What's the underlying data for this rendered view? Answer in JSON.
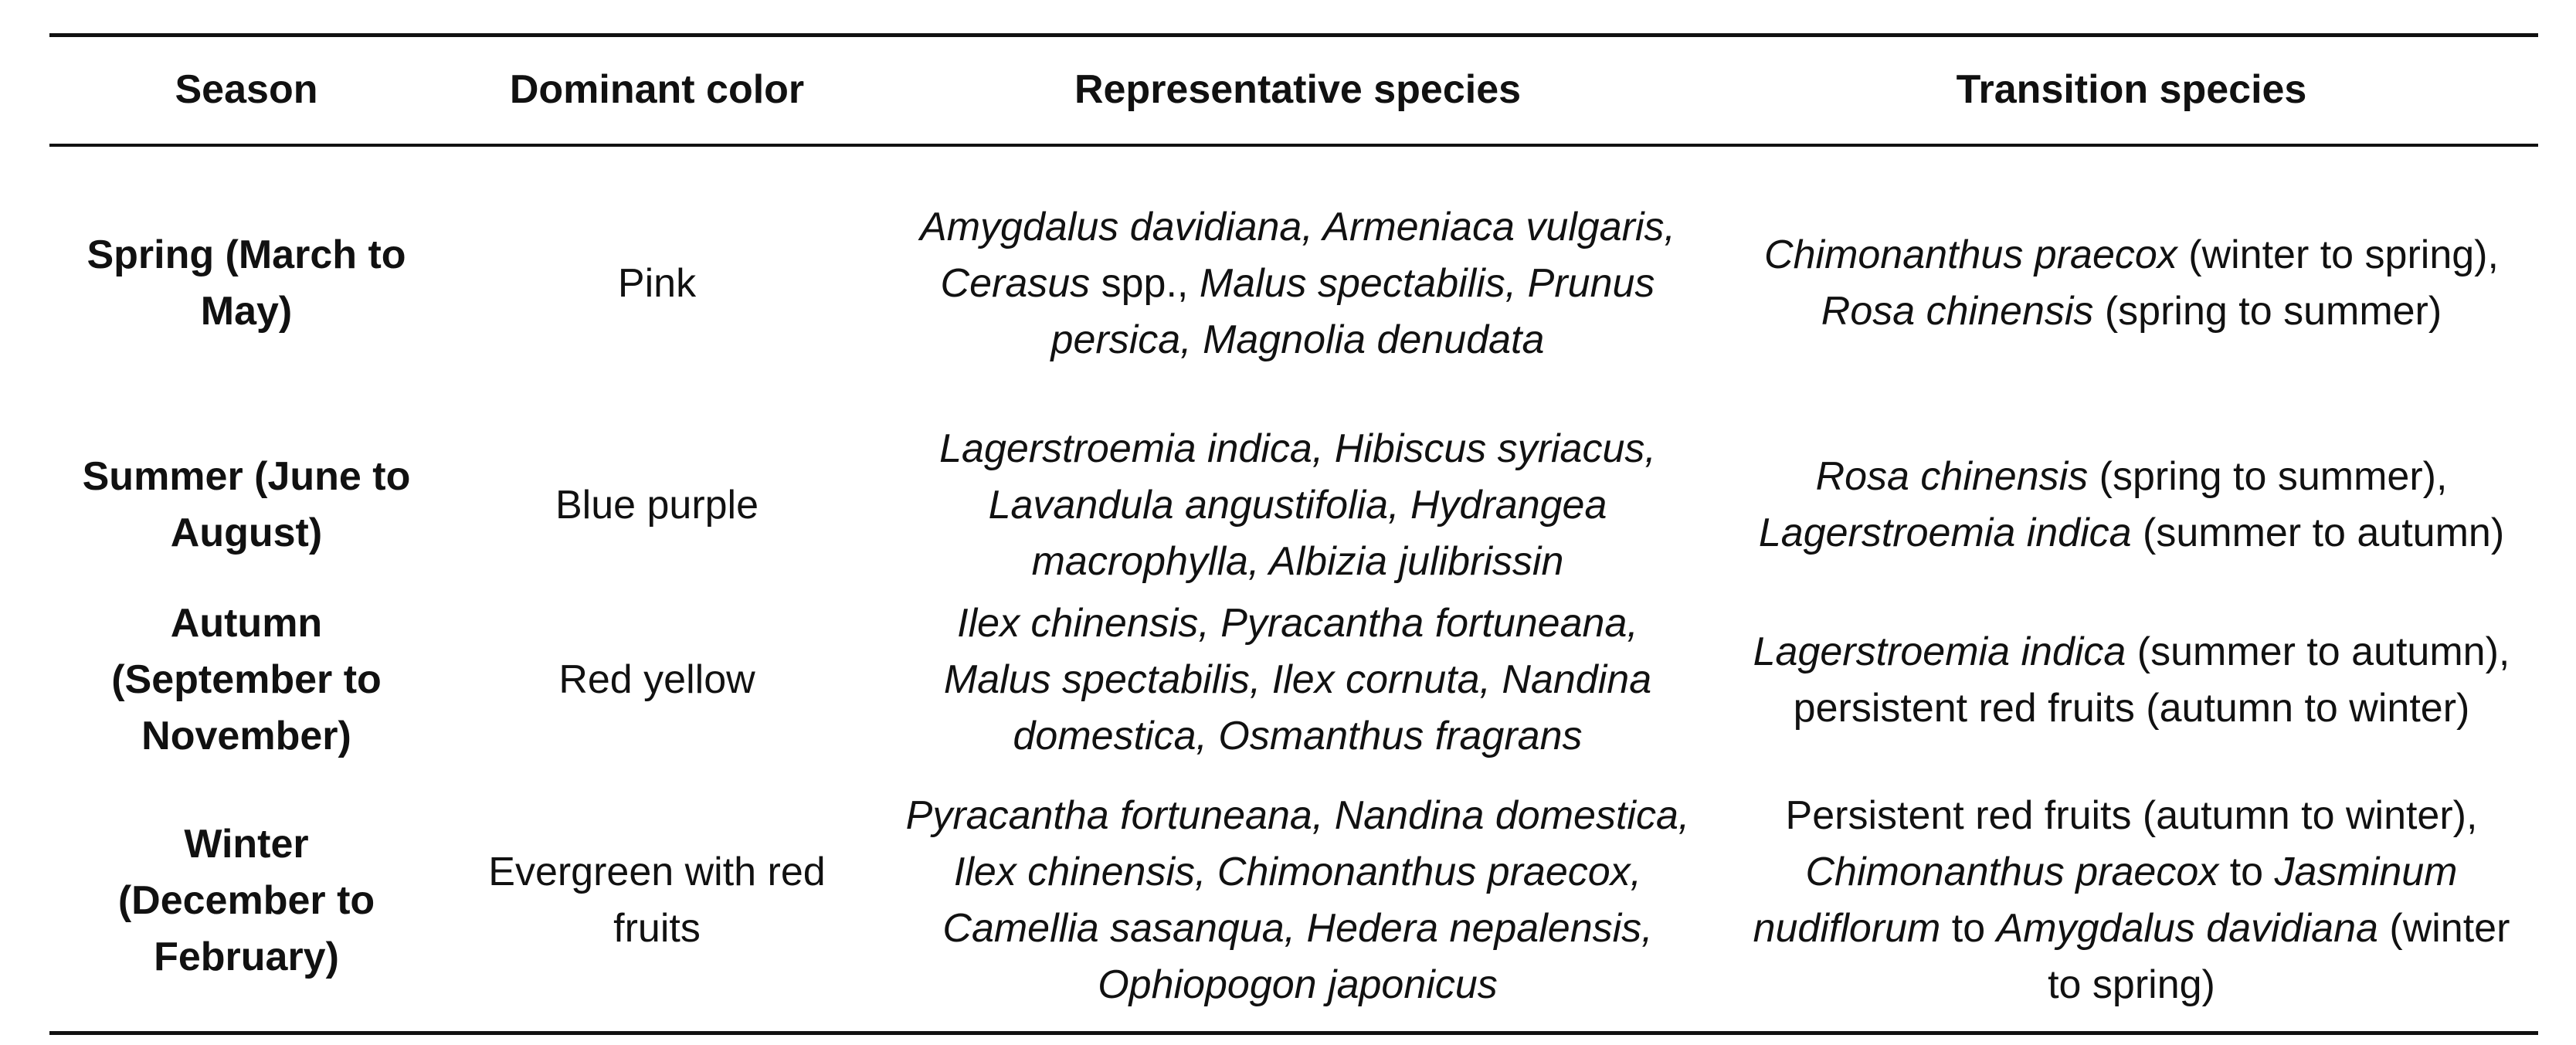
{
  "table": {
    "headers": [
      "Season",
      "Dominant color",
      "Representative species",
      "Transition species"
    ],
    "rows": [
      [
        "Spring (March to May)",
        "Pink",
        [
          {
            "text": "Amygdalus davidiana, Armeniaca vulgaris, Cerasus",
            "italic": true
          },
          {
            "text": " spp., ",
            "italic": false
          },
          {
            "text": "Malus spectabilis, Prunus persica, Magnolia denudata",
            "italic": true
          }
        ],
        [
          {
            "text": "Chimonanthus praecox",
            "italic": true
          },
          {
            "text": " (winter to spring), ",
            "italic": false
          },
          {
            "text": "Rosa chinensis",
            "italic": true
          },
          {
            "text": " (spring to summer)",
            "italic": false
          }
        ]
      ],
      [
        "Summer (June to August)",
        "Blue purple",
        [
          {
            "text": "Lagerstroemia indica, Hibiscus syriacus, Lavandula angustifolia, Hydrangea macrophylla, Albizia julibrissin",
            "italic": true
          }
        ],
        [
          {
            "text": "Rosa chinensis",
            "italic": true
          },
          {
            "text": " (spring to summer), ",
            "italic": false
          },
          {
            "text": "Lagerstroemia indica",
            "italic": true
          },
          {
            "text": " (summer to autumn)",
            "italic": false
          }
        ]
      ],
      [
        "Autumn (September to November)",
        "Red yellow",
        [
          {
            "text": "Ilex chinensis, Pyracantha fortuneana, Malus spectabilis, Ilex cornuta, Nandina domestica, Osmanthus fragrans",
            "italic": true
          }
        ],
        [
          {
            "text": "Lagerstroemia indica",
            "italic": true
          },
          {
            "text": " (summer to autumn), persistent red fruits (autumn to winter)",
            "italic": false
          }
        ]
      ],
      [
        "Winter (December to February)",
        "Evergreen with red fruits",
        [
          {
            "text": "Pyracantha fortuneana, Nandina domestica, Ilex chinensis, Chimonanthus praecox, Camellia sasanqua, Hedera nepalensis, Ophiopogon japonicus",
            "italic": true
          }
        ],
        [
          {
            "text": "Persistent red fruits (autumn to winter), ",
            "italic": false
          },
          {
            "text": "Chimonanthus praecox",
            "italic": true
          },
          {
            "text": " to ",
            "italic": false
          },
          {
            "text": "Jasminum nudiflorum",
            "italic": true
          },
          {
            "text": " to ",
            "italic": false
          },
          {
            "text": "Amygdalus davidiana",
            "italic": true
          },
          {
            "text": " (winter to spring)",
            "italic": false
          }
        ]
      ]
    ]
  }
}
